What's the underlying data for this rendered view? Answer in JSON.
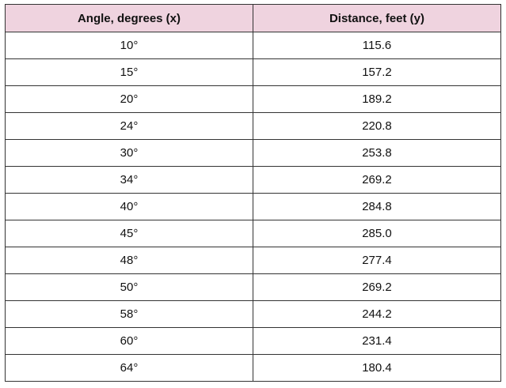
{
  "table": {
    "headers": [
      "Angle, degrees (x)",
      "Distance, feet (y)"
    ],
    "rows": [
      [
        "10°",
        "115.6"
      ],
      [
        "15°",
        "157.2"
      ],
      [
        "20°",
        "189.2"
      ],
      [
        "24°",
        "220.8"
      ],
      [
        "30°",
        "253.8"
      ],
      [
        "34°",
        "269.2"
      ],
      [
        "40°",
        "284.8"
      ],
      [
        "45°",
        "285.0"
      ],
      [
        "48°",
        "277.4"
      ],
      [
        "50°",
        "269.2"
      ],
      [
        "58°",
        "244.2"
      ],
      [
        "60°",
        "231.4"
      ],
      [
        "64°",
        "180.4"
      ]
    ]
  },
  "colors": {
    "header_background": "#efd3df",
    "border": "#333333"
  }
}
